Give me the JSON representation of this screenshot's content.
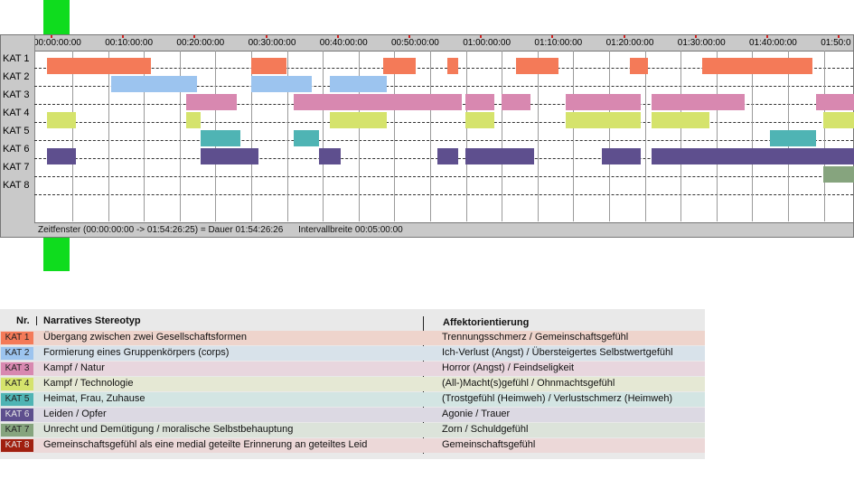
{
  "timeline": {
    "rows": [
      "KAT 1",
      "KAT 2",
      "KAT 3",
      "KAT 4",
      "KAT 5",
      "KAT 6",
      "KAT 7",
      "KAT 8"
    ],
    "ticks": [
      "00:00:00:00",
      "00:10:00:00",
      "00:20:00:00",
      "00:30:00:00",
      "00:40:00:00",
      "00:50:00:00",
      "01:00:00:00",
      "01:10:00:00",
      "01:20:00:00",
      "01:30:00:00",
      "01:40:00:00",
      "01:50:0"
    ],
    "status": {
      "zeitfenster": "Zeitfenster (00:00:00:00 -> 01:54:26:25) = Dauer 01:54:26:26",
      "intervall": "Intervallbreite 00:05:00:00"
    },
    "category_colors": [
      "#f47a58",
      "#9cc4ef",
      "#d888b0",
      "#d5e36c",
      "#4fb4b4",
      "#5e4f8e",
      "#86a47e",
      "#a02010"
    ],
    "segments_minutes": [
      [
        [
          0.5,
          15
        ],
        [
          29,
          34
        ],
        [
          47.5,
          52
        ],
        [
          56.5,
          58
        ],
        [
          66,
          72
        ],
        [
          82,
          84.5
        ],
        [
          92,
          107.5
        ]
      ],
      [
        [
          9.5,
          21.5
        ],
        [
          29,
          37.5
        ],
        [
          40,
          48
        ]
      ],
      [
        [
          20,
          27
        ],
        [
          35,
          58.5
        ],
        [
          59,
          63
        ],
        [
          64,
          68
        ],
        [
          73,
          83.5
        ],
        [
          85,
          98
        ],
        [
          108,
          115
        ]
      ],
      [
        [
          0.5,
          4.5
        ],
        [
          20,
          22
        ],
        [
          40,
          48
        ],
        [
          59,
          63
        ],
        [
          73,
          83.5
        ],
        [
          85,
          93
        ],
        [
          109,
          115
        ]
      ],
      [
        [
          22,
          27.5
        ],
        [
          35,
          38.5
        ],
        [
          101.5,
          108
        ]
      ],
      [
        [
          0.5,
          4.5
        ],
        [
          22,
          30
        ],
        [
          38.5,
          41.5
        ],
        [
          55,
          58
        ],
        [
          59,
          68.5
        ],
        [
          78,
          83.5
        ],
        [
          85,
          115
        ]
      ],
      [
        [
          109,
          115
        ]
      ],
      []
    ]
  },
  "legend": {
    "header_nr": "Nr.",
    "header_narr": "Narratives Stereotyp",
    "header_aff": "Affektorientierung",
    "items": [
      {
        "badge": "KAT 1",
        "narr": "Übergang zwischen zwei Gesellschaftsformen",
        "aff": "Trennungsschmerz / Gemeinschaftsgefühl",
        "color": "#f47a58",
        "bg": "#eed4cc"
      },
      {
        "badge": "KAT 2",
        "narr": "Formierung eines Gruppenkörpers (corps)",
        "aff": "Ich-Verlust (Angst) / Übersteigertes Selbstwertgefühl",
        "color": "#9cc4ef",
        "bg": "#d8e2ea"
      },
      {
        "badge": "KAT 3",
        "narr": "Kampf / Natur",
        "aff": "Horror (Angst) / Feindseligkeit",
        "color": "#d888b0",
        "bg": "#e8d6de"
      },
      {
        "badge": "KAT 4",
        "narr": "Kampf / Technologie",
        "aff": "(All-)Macht(s)gefühl / Ohnmachtsgefühl",
        "color": "#d5e36c",
        "bg": "#e5e8d4"
      },
      {
        "badge": "KAT 5",
        "narr": "Heimat, Frau, Zuhause",
        "aff": "(Trostgefühl (Heimweh) / Verlustschmerz (Heimweh)",
        "color": "#4fb4b4",
        "bg": "#d3e5e3"
      },
      {
        "badge": "KAT 6",
        "narr": "Leiden / Opfer",
        "aff": "Agonie / Trauer",
        "color": "#5e4f8e",
        "bg": "#dcd9e3"
      },
      {
        "badge": "KAT 7",
        "narr": "Unrecht und Demütigung / moralische Selbstbehauptung",
        "aff": "Zorn / Schuldgefühl",
        "color": "#86a47e",
        "bg": "#dce3da"
      },
      {
        "badge": "KAT 8",
        "narr": "Gemeinschaftsgefühl als eine medial geteilte Erinnerung an geteiltes Leid",
        "aff": "Gemeinschaftsgefühl",
        "color": "#a02010",
        "bg": "#ecd8d8"
      }
    ]
  }
}
